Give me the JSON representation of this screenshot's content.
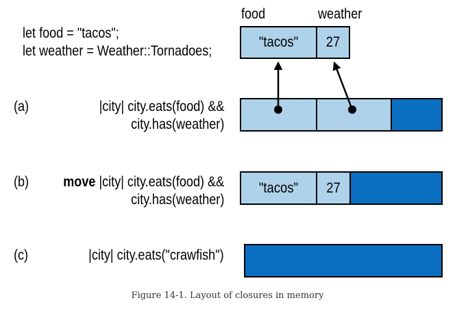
{
  "code": {
    "line1": "let food = \"tacos\";",
    "line2": "let weather = Weather::Tornadoes;"
  },
  "vars": {
    "food_label": "food",
    "weather_label": "weather",
    "food_value": "\"tacos\"",
    "weather_value": "27"
  },
  "rows": [
    {
      "label": "(a)",
      "keyword": "",
      "line1": "|city| city.eats(food) &&",
      "line2": "city.has(weather)"
    },
    {
      "label": "(b)",
      "keyword": "move",
      "line1": "|city| city.eats(food) &&",
      "line2": "city.has(weather)",
      "food_value": "\"tacos\"",
      "weather_value": "27"
    },
    {
      "label": "(c)",
      "keyword": "",
      "line1": "|city| city.eats(\"crawfish\")",
      "line2": ""
    }
  ],
  "caption": "Figure 14-1. Layout of closures in memory",
  "colors": {
    "light_cell": "#aed2ea",
    "dark_cell": "#0a6fc1",
    "border": "#000000"
  }
}
